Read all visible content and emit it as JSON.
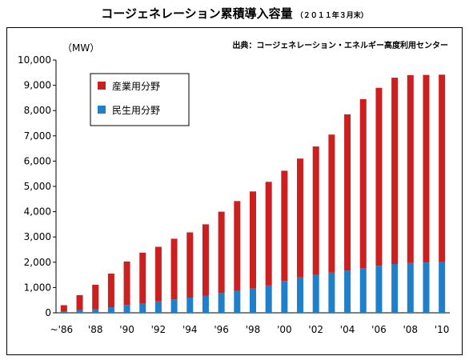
{
  "title": "コージェネレーション累積導入容量",
  "title_note": "（２０１１年３月末）",
  "source": "出典：コージェネレーション・エネルギー高度利用センター",
  "chart_data": {
    "type": "bar",
    "stacked": true,
    "unit_label": "（MW）",
    "ylim": [
      0,
      10000
    ],
    "y_ticks": [
      "0",
      "1,000",
      "2,000",
      "3,000",
      "4,000",
      "5,000",
      "6,000",
      "7,000",
      "8,000",
      "9,000",
      "10,000"
    ],
    "categories": [
      "~'86",
      "'87",
      "'88",
      "'89",
      "'90",
      "'91",
      "'92",
      "'93",
      "'94",
      "'95",
      "'96",
      "'97",
      "'98",
      "'99",
      "'00",
      "'01",
      "'02",
      "'03",
      "'04",
      "'05",
      "'06",
      "'07",
      "'08",
      "'09",
      "'10"
    ],
    "x_tick_labels": [
      "~'86",
      "'88",
      "'90",
      "'92",
      "'94",
      "'96",
      "'98",
      "'00",
      "'02",
      "'04",
      "'06",
      "'08",
      "'10"
    ],
    "series": [
      {
        "name": "民生用分野",
        "color": "#1f7fc9",
        "values": [
          50,
          110,
          140,
          220,
          310,
          380,
          450,
          530,
          600,
          680,
          780,
          860,
          960,
          1080,
          1260,
          1400,
          1500,
          1590,
          1670,
          1770,
          1860,
          1930,
          1970,
          1990,
          2000
        ]
      },
      {
        "name": "産業用分野",
        "color": "#cc1f1f",
        "values": [
          250,
          590,
          970,
          1330,
          1720,
          2000,
          2160,
          2400,
          2580,
          2820,
          3220,
          3560,
          3840,
          4100,
          4360,
          4700,
          5080,
          5460,
          6180,
          6680,
          7040,
          7370,
          7430,
          7420,
          7420
        ]
      }
    ],
    "legend": {
      "placement": "top-left",
      "order": [
        "産業用分野",
        "民生用分野"
      ]
    },
    "grid": false
  }
}
